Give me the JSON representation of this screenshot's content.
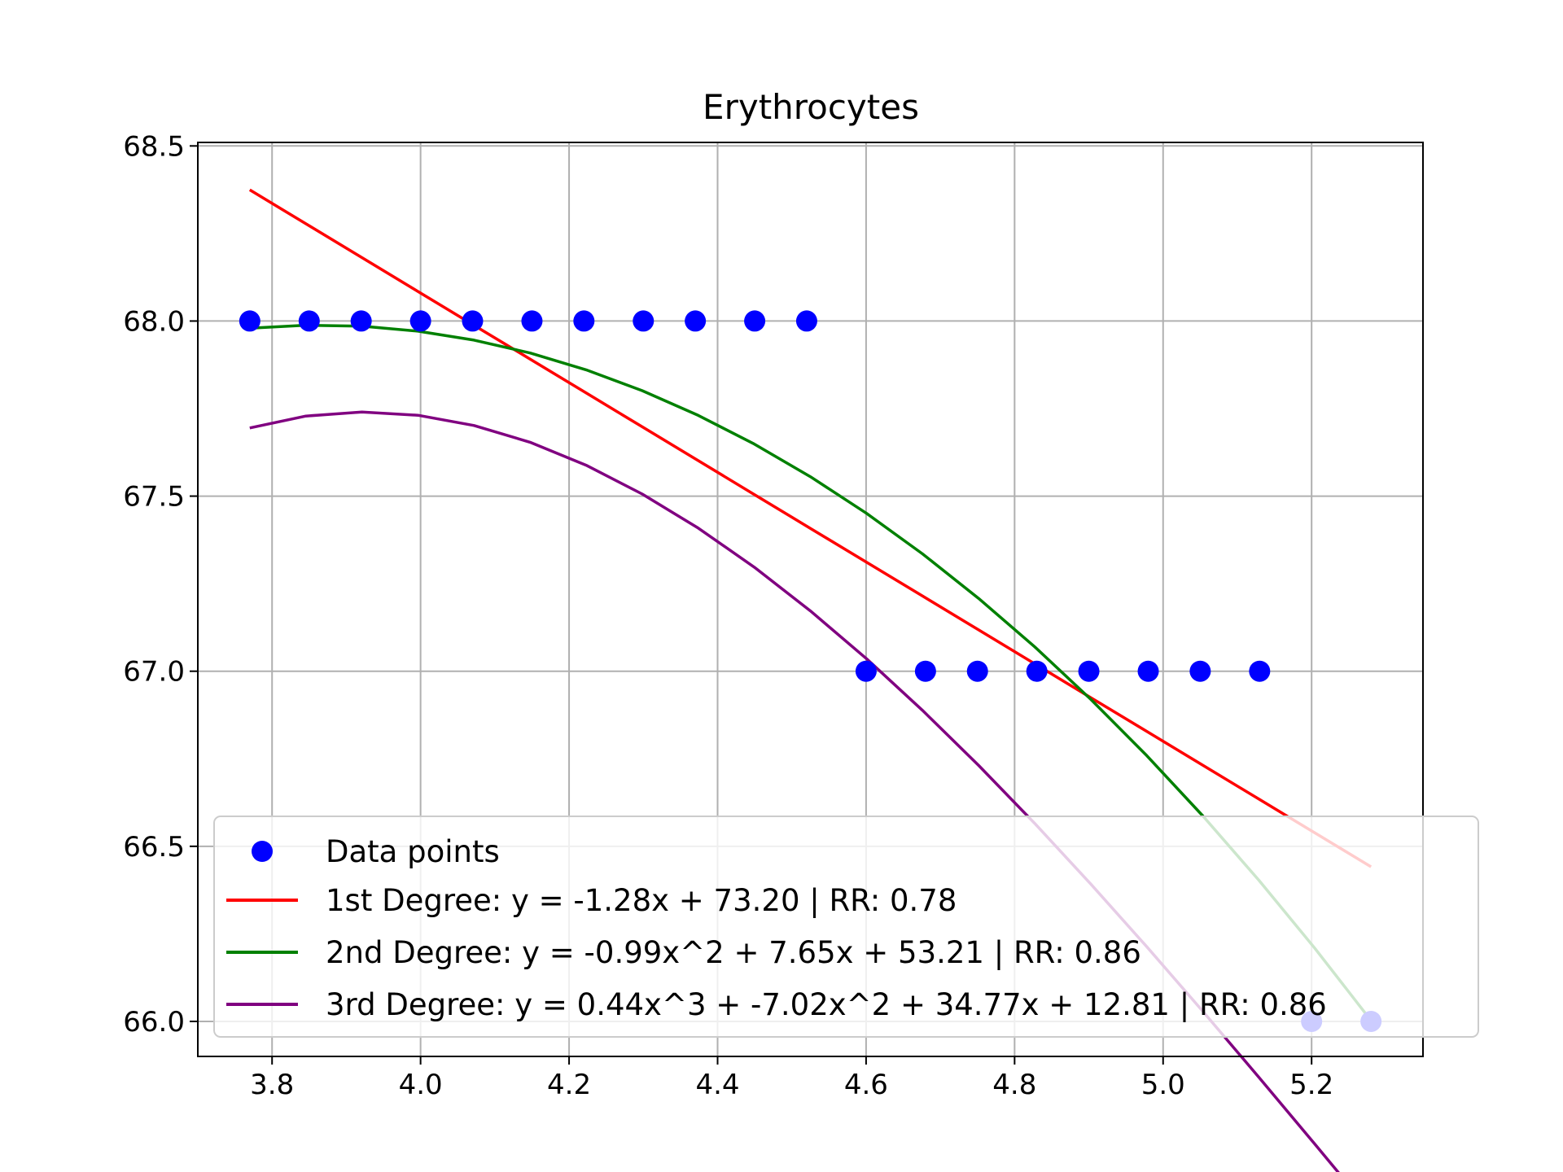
{
  "chart_data": {
    "type": "scatter",
    "title": "Erythrocytes",
    "xlabel": "",
    "ylabel": "",
    "xlim": [
      3.7,
      5.35
    ],
    "ylim": [
      65.9,
      68.51
    ],
    "x_ticks": [
      3.8,
      4.0,
      4.2,
      4.4,
      4.6,
      4.8,
      5.0,
      5.2
    ],
    "x_tick_labels": [
      "3.8",
      "4.0",
      "4.2",
      "4.4",
      "4.6",
      "4.8",
      "5.0",
      "5.2"
    ],
    "y_ticks": [
      66.0,
      66.5,
      67.0,
      67.5,
      68.0,
      68.5
    ],
    "y_tick_labels": [
      "66.0",
      "66.5",
      "67.0",
      "67.5",
      "68.0",
      "68.5"
    ],
    "grid": true,
    "legend_position": "lower-right",
    "points": {
      "name": "Data points",
      "color": "#0000ff",
      "x": [
        3.77,
        3.85,
        3.92,
        4.0,
        4.07,
        4.15,
        4.22,
        4.3,
        4.37,
        4.45,
        4.52,
        4.6,
        4.68,
        4.75,
        4.83,
        4.9,
        4.98,
        5.05,
        5.13,
        5.2,
        5.28
      ],
      "y": [
        68,
        68,
        68,
        68,
        68,
        68,
        68,
        68,
        68,
        68,
        68,
        67,
        67,
        67,
        67,
        67,
        67,
        67,
        67,
        66,
        66
      ]
    },
    "series": [
      {
        "name": "1st Degree: y = -1.28x + 73.20 | RR: 0.78",
        "color": "#ff0000",
        "coefficients": [
          -1.28,
          73.2
        ]
      },
      {
        "name": "2nd Degree: y = -0.99x^2 + 7.65x + 53.21 | RR: 0.86",
        "color": "#008000",
        "coefficients": [
          -0.99,
          7.65,
          53.21
        ]
      },
      {
        "name": "3rd Degree: y = 0.44x^3 + -7.02x^2 + 34.77x + 12.81 | RR: 0.86",
        "color": "#800080",
        "coefficients": [
          0.44,
          -7.02,
          34.77,
          12.81
        ]
      }
    ]
  }
}
